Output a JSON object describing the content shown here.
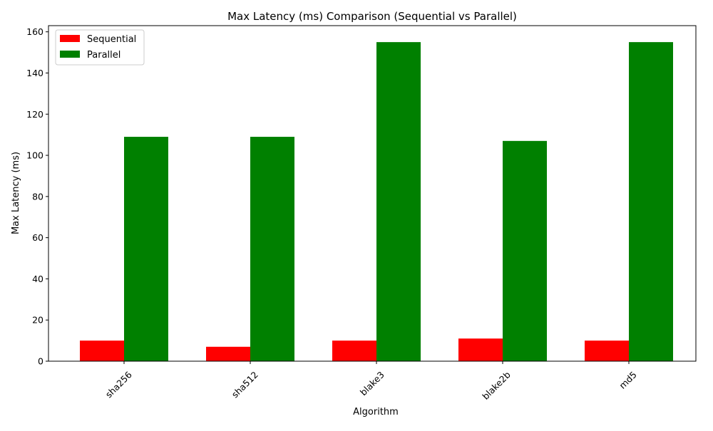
{
  "chart_data": {
    "type": "bar",
    "title": "Max Latency (ms) Comparison (Sequential vs Parallel)",
    "xlabel": "Algorithm",
    "ylabel": "Max Latency (ms)",
    "categories": [
      "sha256",
      "sha512",
      "blake3",
      "blake2b",
      "md5"
    ],
    "series": [
      {
        "name": "Sequential",
        "color": "#ff0000",
        "values": [
          10,
          7,
          10,
          11,
          10
        ]
      },
      {
        "name": "Parallel",
        "color": "#008000",
        "values": [
          109,
          109,
          155,
          107,
          155
        ]
      }
    ],
    "ylim": [
      0,
      163
    ],
    "yticks": [
      0,
      20,
      40,
      60,
      80,
      100,
      120,
      140,
      160
    ],
    "legend_position": "top-left",
    "grid": false,
    "xtick_rotation": 45
  }
}
